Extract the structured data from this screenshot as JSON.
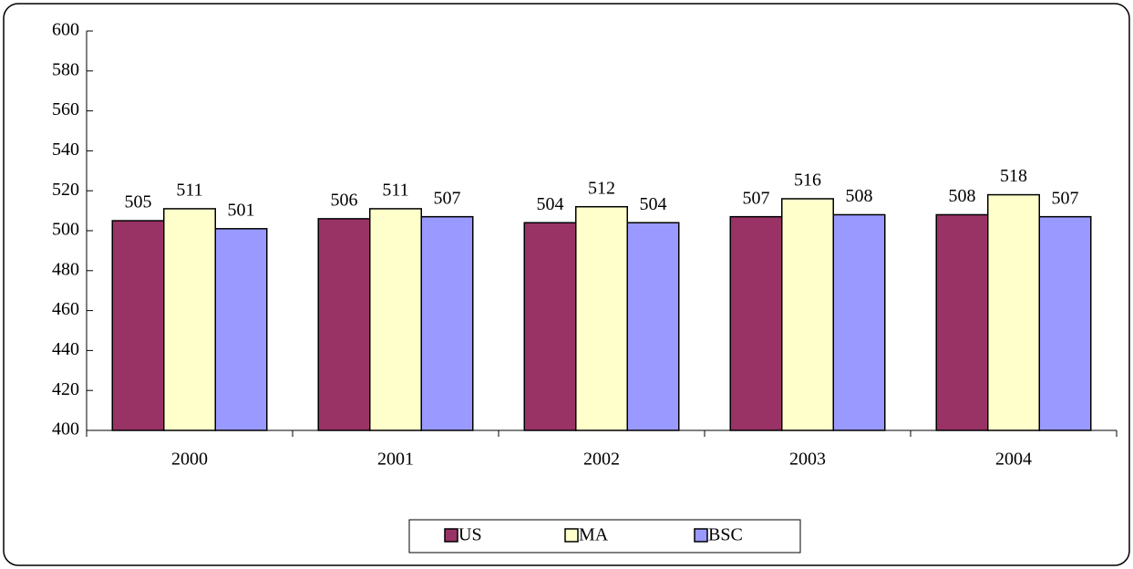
{
  "chart_data": {
    "type": "bar",
    "categories": [
      "2000",
      "2001",
      "2002",
      "2003",
      "2004"
    ],
    "series": [
      {
        "name": "US",
        "color": "#993366",
        "values": [
          505,
          506,
          504,
          507,
          508
        ]
      },
      {
        "name": "MA",
        "color": "#FFFFCC",
        "values": [
          511,
          511,
          512,
          516,
          518
        ]
      },
      {
        "name": "BSC",
        "color": "#9999FF",
        "values": [
          501,
          507,
          504,
          508,
          507
        ]
      }
    ],
    "ylim": [
      400,
      600
    ],
    "yticks": [
      400,
      420,
      440,
      460,
      480,
      500,
      520,
      540,
      560,
      580,
      600
    ],
    "grid": false,
    "legend": "bottom"
  }
}
